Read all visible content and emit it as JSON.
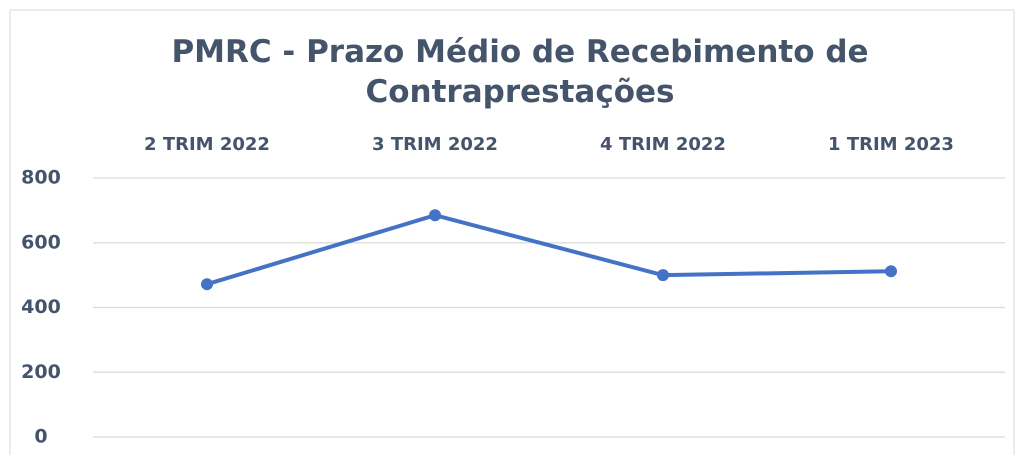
{
  "chart_data": {
    "type": "line",
    "title": "PMRC - Prazo Médio de Recebimento de Contraprestações",
    "categories": [
      "2 TRIM 2022",
      "3 TRIM 2022",
      "4 TRIM 2022",
      "1 TRIM 2023"
    ],
    "series": [
      {
        "name": "PMRC",
        "color": "#4472c4",
        "values": [
          472,
          685,
          500,
          512
        ]
      }
    ],
    "ylim": [
      0,
      800
    ],
    "yticks": [
      0,
      200,
      400,
      600,
      800
    ],
    "grid": true
  }
}
